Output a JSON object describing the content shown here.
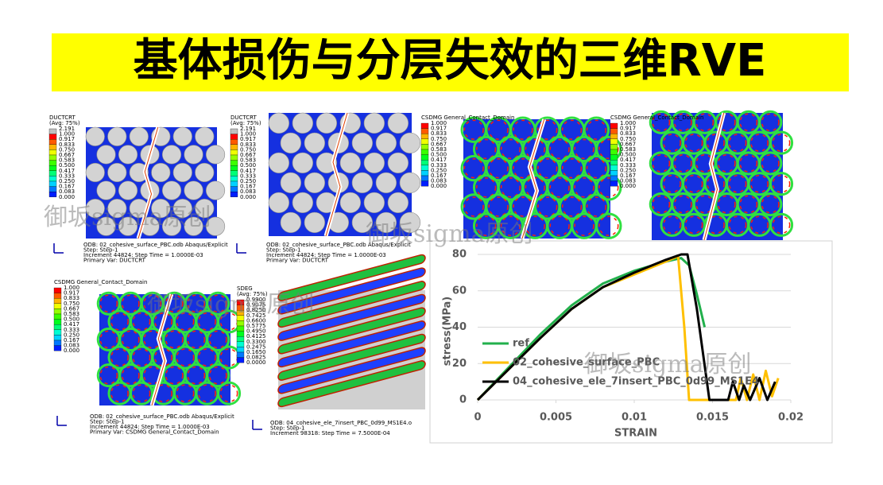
{
  "header": {
    "title": "基体损伤与分层失效的三维RVE"
  },
  "watermarks": [
    "御坂sigma原创",
    "御坂sigma原创",
    "御坂sigma原创",
    "御坂sigma原创"
  ],
  "panels": [
    {
      "legend_title": "DUCTCRT",
      "legend_avg": "(Avg: 75%)",
      "levels": [
        "2.191",
        "1.000",
        "0.917",
        "0.833",
        "0.750",
        "0.667",
        "0.583",
        "0.500",
        "0.417",
        "0.333",
        "0.250",
        "0.167",
        "0.083",
        "0.000"
      ],
      "info": [
        "ODB: 02_cohesive_surface_PBC.odb    Abaqus/Explicit",
        "Step: Step-1",
        "Increment     44824: Step Time =    1.0000E-03",
        "Primary Var: DUCTCRT"
      ]
    },
    {
      "legend_title": "DUCTCRT",
      "legend_avg": "(Avg: 75%)",
      "levels": [
        "2.191",
        "1.000",
        "0.917",
        "0.833",
        "0.750",
        "0.667",
        "0.583",
        "0.500",
        "0.417",
        "0.333",
        "0.250",
        "0.167",
        "0.083",
        "0.000"
      ],
      "info": [
        "ODB: 02_cohesive_surface_PBC.odb    Abaqus/Explicit",
        "Step: Step-1",
        "Increment     44824: Step Time =    1.0000E-03",
        "Primary Var: DUCTCRT"
      ]
    },
    {
      "legend_title": "CSDMG General_Contact_Domain",
      "levels": [
        "1.000",
        "0.917",
        "0.833",
        "0.750",
        "0.667",
        "0.583",
        "0.500",
        "0.417",
        "0.333",
        "0.250",
        "0.167",
        "0.083",
        "0.000"
      ]
    },
    {
      "legend_title": "CSDMG General_Contact_Domain",
      "levels": [
        "1.000",
        "0.917",
        "0.833",
        "0.750",
        "0.667",
        "0.583",
        "0.500",
        "0.417",
        "0.333",
        "0.250",
        "0.167",
        "0.083",
        "0.000"
      ]
    },
    {
      "legend_title": "CSDMG General_Contact_Domain",
      "levels": [
        "1.000",
        "0.917",
        "0.833",
        "0.750",
        "0.667",
        "0.583",
        "0.500",
        "0.417",
        "0.333",
        "0.250",
        "0.167",
        "0.083",
        "0.000"
      ],
      "info": [
        "ODB: 02_cohesive_surface_PBC.odb    Abaqus/Explicit",
        "Step: Step-1",
        "Increment     44824: Step Time =    1.0000E-03",
        "Primary Var: CSDMG General_Contact_Domain"
      ]
    },
    {
      "legend_title": "SDEG",
      "legend_avg": "(Avg: 75%)",
      "levels": [
        "0.9900",
        "0.9075",
        "0.8250",
        "0.7425",
        "0.6600",
        "0.5775",
        "0.4950",
        "0.4125",
        "0.3300",
        "0.2475",
        "0.1650",
        "0.0825",
        "0.0000"
      ],
      "info": [
        "ODB: 04_cohesive_ele_7insert_PBC_0d99_MS1E4.o",
        "Step: Step-1",
        "Increment     98318: Step Time =    7.5000E-04"
      ]
    }
  ],
  "chart_data": {
    "type": "line",
    "x_label": "STRAIN",
    "y_label": "stress(MPa)",
    "xlim": [
      0,
      0.02
    ],
    "xticks": [
      0,
      0.005,
      0.01,
      0.015,
      0.02
    ],
    "ylim": [
      0,
      80
    ],
    "yticks": [
      0,
      20,
      40,
      60,
      80
    ],
    "grid": true,
    "series": [
      {
        "name": "ref",
        "color": "#22b04c",
        "x": [
          0,
          0.002,
          0.004,
          0.006,
          0.008,
          0.01,
          0.012,
          0.013,
          0.0135,
          0.014,
          0.0145
        ],
        "values": [
          0,
          18,
          36,
          52,
          64,
          71,
          76,
          78,
          74,
          58,
          40
        ]
      },
      {
        "name": "02_cohesive_surface_PBC",
        "color": "#ffc000",
        "x": [
          0,
          0.002,
          0.004,
          0.006,
          0.008,
          0.01,
          0.012,
          0.0128,
          0.0132,
          0.0135,
          0.0165,
          0.0168,
          0.0172,
          0.0176,
          0.018,
          0.0184,
          0.0188,
          0.0192
        ],
        "values": [
          0,
          17,
          34,
          50,
          62,
          69,
          76,
          79,
          40,
          0,
          0,
          12,
          0,
          14,
          0,
          16,
          2,
          12
        ]
      },
      {
        "name": "04_cohesive_ele_7insert_PBC_0d99_MS1E4",
        "color": "#000000",
        "x": [
          0,
          0.002,
          0.004,
          0.006,
          0.008,
          0.01,
          0.012,
          0.013,
          0.0134,
          0.014,
          0.0148,
          0.016,
          0.0163,
          0.0167,
          0.017,
          0.0174,
          0.018,
          0.0185,
          0.019
        ],
        "values": [
          0,
          17,
          34,
          50,
          62,
          70,
          77,
          80,
          80,
          50,
          0,
          0,
          10,
          0,
          8,
          0,
          12,
          0,
          10
        ]
      }
    ]
  }
}
